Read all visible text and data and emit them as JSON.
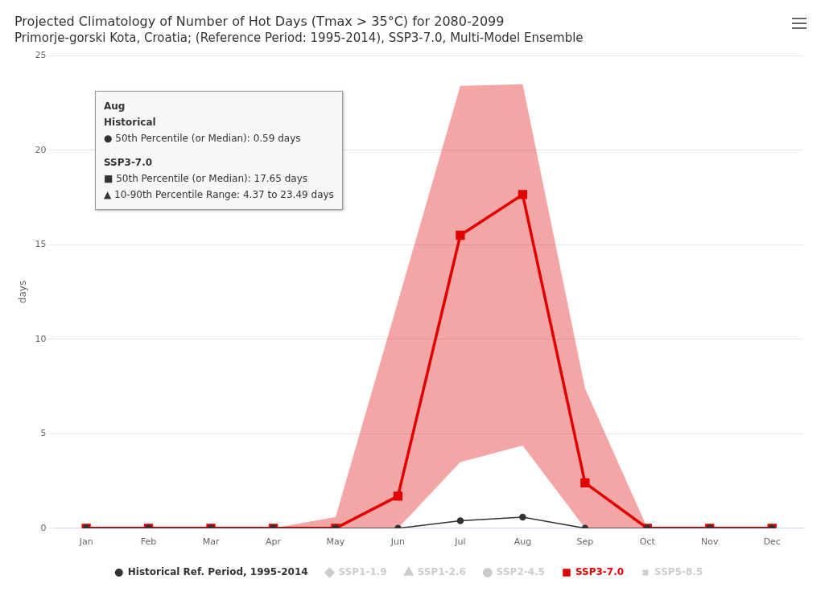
{
  "chart_data": {
    "type": "line",
    "title": "Projected Climatology of Number of Hot Days (Tmax > 35°C) for 2080-2099",
    "subtitle": "Primorje-gorski Kota, Croatia; (Reference Period: 1995-2014), SSP3-7.0, Multi-Model Ensemble",
    "ylabel": "days",
    "categories": [
      "Jan",
      "Feb",
      "Mar",
      "Apr",
      "May",
      "Jun",
      "Jul",
      "Aug",
      "Sep",
      "Oct",
      "Nov",
      "Dec"
    ],
    "series": [
      {
        "name": "Historical Ref. Period, 1995-2014",
        "color": "#333333",
        "marker": "circle",
        "values": [
          0,
          0,
          0,
          0,
          0,
          0,
          0.4,
          0.59,
          0,
          0,
          0,
          0
        ]
      },
      {
        "name": "SSP1-1.9",
        "color": "#cccccc",
        "marker": "diamond",
        "values": [
          null,
          null,
          null,
          null,
          null,
          null,
          null,
          null,
          null,
          null,
          null,
          null
        ]
      },
      {
        "name": "SSP1-2.6",
        "color": "#cccccc",
        "marker": "triangle",
        "values": [
          null,
          null,
          null,
          null,
          null,
          null,
          null,
          null,
          null,
          null,
          null,
          null
        ]
      },
      {
        "name": "SSP2-4.5",
        "color": "#cccccc",
        "marker": "circle",
        "values": [
          null,
          null,
          null,
          null,
          null,
          null,
          null,
          null,
          null,
          null,
          null,
          null
        ]
      },
      {
        "name": "SSP3-7.0",
        "color": "#e00000",
        "marker": "square",
        "values": [
          0,
          0,
          0,
          0,
          0,
          1.7,
          15.5,
          17.65,
          2.4,
          0,
          0,
          0
        ],
        "lower": [
          0,
          0,
          0,
          0,
          0,
          0,
          3.5,
          4.37,
          0,
          0,
          0,
          0
        ],
        "upper": [
          0,
          0,
          0,
          0,
          0.6,
          12,
          23.4,
          23.49,
          7.4,
          0,
          0,
          0
        ]
      },
      {
        "name": "SSP5-8.5",
        "color": "#cccccc",
        "marker": "cross",
        "values": [
          null,
          null,
          null,
          null,
          null,
          null,
          null,
          null,
          null,
          null,
          null,
          null
        ]
      }
    ],
    "ylim": [
      0,
      25
    ],
    "yticks": [
      0,
      5,
      10,
      15,
      20,
      25
    ],
    "grid": "y",
    "legend": "bottom",
    "annotations": [
      "Aug",
      "Historical",
      "● 50th Percentile (or Median): 0.59 days",
      "SSP3-7.0",
      "■ 50th Percentile (or Median): 17.65 days",
      "▲ 10-90th Percentile Range: 4.37 to 23.49 days"
    ]
  }
}
